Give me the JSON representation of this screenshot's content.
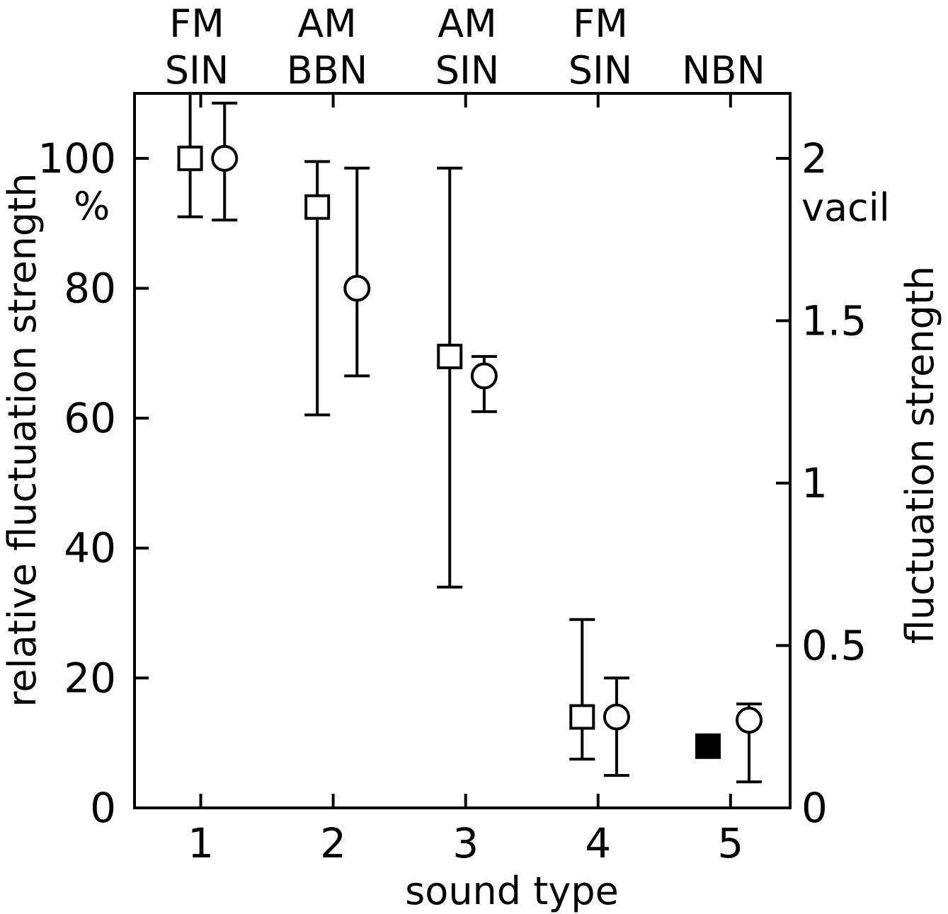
{
  "chart_data": {
    "type": "scatter",
    "xlabel": "sound type",
    "ylabel": "relative fluctuation strength",
    "ylabel_unit": "%",
    "y2label": "fluctuation strength",
    "y2label_unit": "vacil",
    "xlim": [
      0.5,
      5.45
    ],
    "ylim": [
      0,
      110
    ],
    "y2lim": [
      0,
      2.2
    ],
    "grid": false,
    "categories": [
      1,
      2,
      3,
      4,
      5
    ],
    "top_labels": [
      [
        "FM",
        "SIN"
      ],
      [
        "AM",
        "BBN"
      ],
      [
        "AM",
        "SIN"
      ],
      [
        "FM",
        "SIN"
      ],
      [
        "",
        "NBN"
      ]
    ],
    "x_ticks": [
      1,
      2,
      3,
      4,
      5
    ],
    "y_ticks": [
      0,
      20,
      40,
      60,
      80,
      100
    ],
    "y2_ticks": [
      0,
      0.5,
      1,
      1.5,
      2
    ],
    "y2_tick_labels": [
      "0",
      "0.5",
      "1",
      "1.5",
      "2"
    ],
    "series": [
      {
        "marker": "square",
        "points": [
          {
            "x": 0.92,
            "y": 100,
            "low": 91,
            "high": 110
          },
          {
            "x": 1.88,
            "y": 92.5,
            "low": 60.5,
            "high": 99.5
          },
          {
            "x": 2.88,
            "y": 69.5,
            "low": 34,
            "high": 98.5
          },
          {
            "x": 3.88,
            "y": 14,
            "low": 7.5,
            "high": 29
          },
          {
            "x": 4.83,
            "y": 9.5,
            "filled": true
          }
        ]
      },
      {
        "marker": "circle",
        "points": [
          {
            "x": 1.18,
            "y": 100,
            "low": 90.5,
            "high": 108.5
          },
          {
            "x": 2.18,
            "y": 80,
            "low": 66.5,
            "high": 98.5
          },
          {
            "x": 3.14,
            "y": 66.5,
            "low": 61,
            "high": 69.5
          },
          {
            "x": 4.14,
            "y": 14,
            "low": 5,
            "high": 20
          },
          {
            "x": 5.14,
            "y": 13.5,
            "low": 4,
            "high": 16
          }
        ]
      }
    ],
    "colors": {
      "ink": "#000000",
      "background": "#ffffff"
    }
  }
}
